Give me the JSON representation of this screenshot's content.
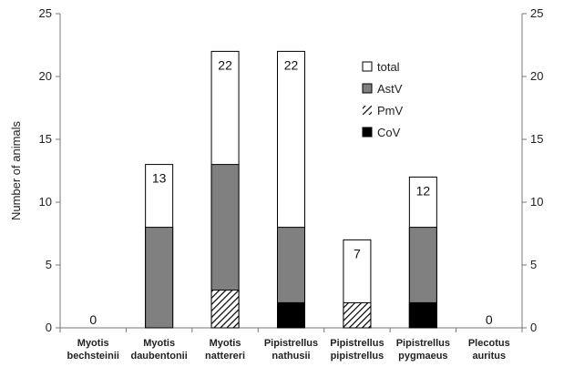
{
  "chart_data": {
    "type": "bar",
    "stacking": "overlay",
    "title": "",
    "xlabel": "",
    "ylabel": "Number of animals",
    "ylim": [
      0,
      25
    ],
    "yticks": [
      0,
      5,
      10,
      15,
      20,
      25
    ],
    "secondary_y_axis": true,
    "grid": false,
    "legend_position": "top-right",
    "categories": [
      [
        "Myotis",
        "bechsteinii"
      ],
      [
        "Myotis",
        "daubentonii"
      ],
      [
        "Myotis",
        "nattereri"
      ],
      [
        "Pipistrellus",
        "nathusii"
      ],
      [
        "Pipistrellus",
        "pipistrellus"
      ],
      [
        "Pipistrellus",
        "pygmaeus"
      ],
      [
        "Plecotus",
        "auritus"
      ]
    ],
    "series": [
      {
        "name": "AstV",
        "values": [
          0,
          8,
          13,
          8,
          0,
          8,
          0
        ],
        "color": "#808080",
        "pattern": "solid"
      },
      {
        "name": "PmV",
        "values": [
          0,
          0,
          3,
          0,
          2,
          0,
          0
        ],
        "color": "#000000",
        "pattern": "diagonal-hatch"
      },
      {
        "name": "CoV",
        "values": [
          0,
          0,
          0,
          2,
          0,
          2,
          0
        ],
        "color": "#000000",
        "pattern": "solid"
      },
      {
        "name": "total",
        "values": [
          0,
          13,
          22,
          22,
          7,
          12,
          0
        ],
        "color": "#ffffff",
        "pattern": "outline"
      }
    ],
    "data_labels": [
      "0",
      "13",
      "22",
      "22",
      "7",
      "12",
      "0"
    ]
  }
}
